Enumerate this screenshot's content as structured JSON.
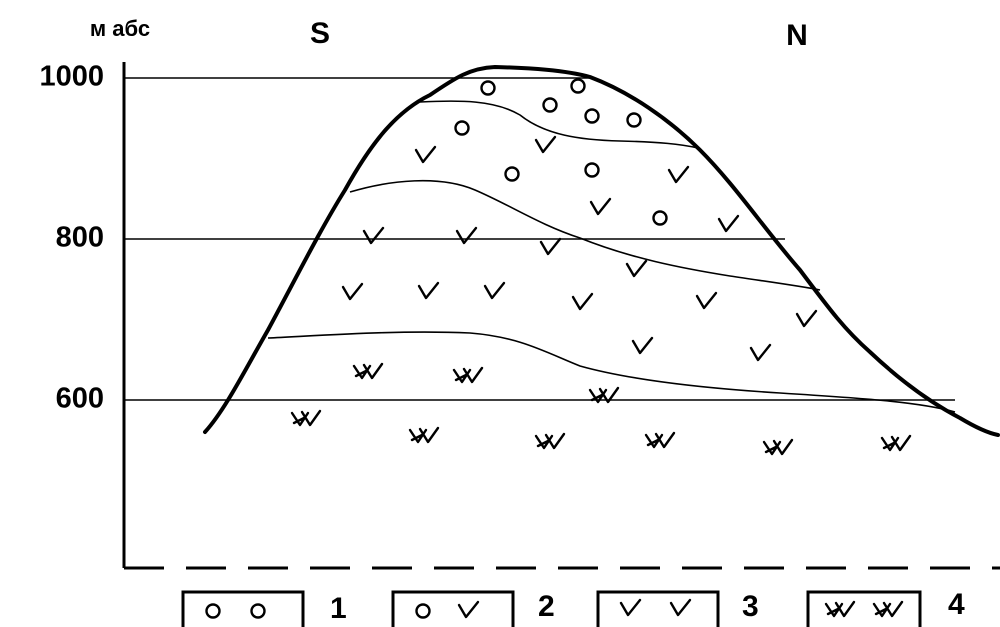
{
  "axis_unit": "м абс",
  "directions": {
    "left": "S",
    "right": "N"
  },
  "yticks": [
    1000,
    800,
    600
  ],
  "legend": [
    "1",
    "2",
    "3",
    "4"
  ]
}
